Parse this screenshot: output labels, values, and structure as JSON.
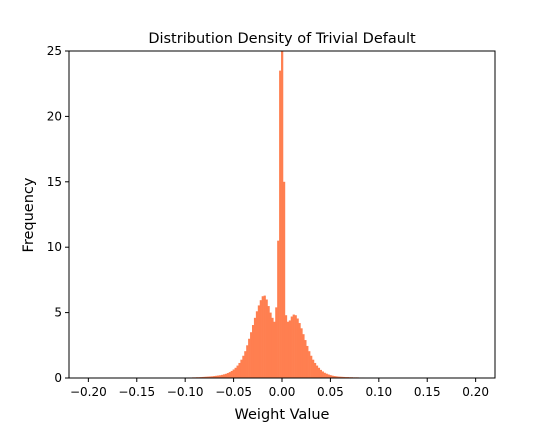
{
  "chart_data": {
    "type": "bar",
    "title": "Distribution Density of Trivial Default",
    "xlabel": "Weight Value",
    "ylabel": "Frequency",
    "xlim": [
      -0.22,
      0.22
    ],
    "ylim": [
      0,
      25
    ],
    "xticks": [
      -0.2,
      -0.15,
      -0.1,
      -0.05,
      0.0,
      0.05,
      0.1,
      0.15,
      0.2
    ],
    "xtick_labels": [
      "−0.20",
      "−0.15",
      "−0.10",
      "−0.05",
      "0.00",
      "0.05",
      "0.10",
      "0.15",
      "0.20"
    ],
    "yticks": [
      0,
      5,
      10,
      15,
      20,
      25
    ],
    "ytick_labels": [
      "0",
      "5",
      "10",
      "15",
      "20",
      "25"
    ],
    "grid": false,
    "bar_color": "#ff7f50",
    "bin_width": 0.002,
    "series": [
      {
        "x": [
          -0.1,
          -0.098,
          -0.096,
          -0.094,
          -0.092,
          -0.09,
          -0.088,
          -0.086,
          -0.084,
          -0.082,
          -0.08,
          -0.078,
          -0.076,
          -0.074,
          -0.072,
          -0.07,
          -0.068,
          -0.066,
          -0.064,
          -0.062,
          -0.06,
          -0.058,
          -0.056,
          -0.054,
          -0.052,
          -0.05,
          -0.048,
          -0.046,
          -0.044,
          -0.042,
          -0.04,
          -0.038,
          -0.036,
          -0.034,
          -0.032,
          -0.03,
          -0.028,
          -0.026,
          -0.024,
          -0.022,
          -0.02,
          -0.018,
          -0.016,
          -0.014,
          -0.012,
          -0.01,
          -0.008,
          -0.006,
          -0.004,
          -0.002,
          0.0,
          0.002,
          0.004,
          0.006,
          0.008,
          0.01,
          0.012,
          0.014,
          0.016,
          0.018,
          0.02,
          0.022,
          0.024,
          0.026,
          0.028,
          0.03,
          0.032,
          0.034,
          0.036,
          0.038,
          0.04,
          0.042,
          0.044,
          0.046,
          0.048,
          0.05,
          0.052,
          0.054,
          0.056,
          0.058,
          0.06,
          0.062,
          0.064,
          0.066,
          0.068,
          0.07,
          0.072,
          0.074,
          0.076,
          0.078,
          0.08,
          0.082,
          0.084,
          0.086,
          0.088,
          0.09,
          0.092,
          0.094,
          0.096,
          0.098,
          0.1,
          0.102,
          0.104
        ],
        "values": [
          0.03,
          0.03,
          0.04,
          0.04,
          0.05,
          0.05,
          0.06,
          0.06,
          0.07,
          0.08,
          0.09,
          0.1,
          0.11,
          0.12,
          0.13,
          0.15,
          0.17,
          0.19,
          0.21,
          0.24,
          0.28,
          0.32,
          0.38,
          0.45,
          0.54,
          0.65,
          0.78,
          0.95,
          1.15,
          1.4,
          1.7,
          2.05,
          2.5,
          3.0,
          3.5,
          4.05,
          4.6,
          5.1,
          5.55,
          5.95,
          6.25,
          6.3,
          6.0,
          5.5,
          5.0,
          4.6,
          4.3,
          5.4,
          10.5,
          23.5,
          25.0,
          15.0,
          4.8,
          4.3,
          4.4,
          4.7,
          4.85,
          4.8,
          4.55,
          4.2,
          3.8,
          3.35,
          2.9,
          2.45,
          2.05,
          1.7,
          1.4,
          1.15,
          0.95,
          0.78,
          0.62,
          0.5,
          0.4,
          0.33,
          0.27,
          0.22,
          0.18,
          0.15,
          0.13,
          0.11,
          0.1,
          0.09,
          0.08,
          0.07,
          0.07,
          0.06,
          0.06,
          0.05,
          0.05,
          0.05,
          0.04,
          0.04,
          0.04,
          0.03,
          0.03,
          0.03,
          0.03,
          0.03,
          0.03,
          0.02,
          0.02,
          0.02,
          0.02
        ]
      }
    ]
  }
}
